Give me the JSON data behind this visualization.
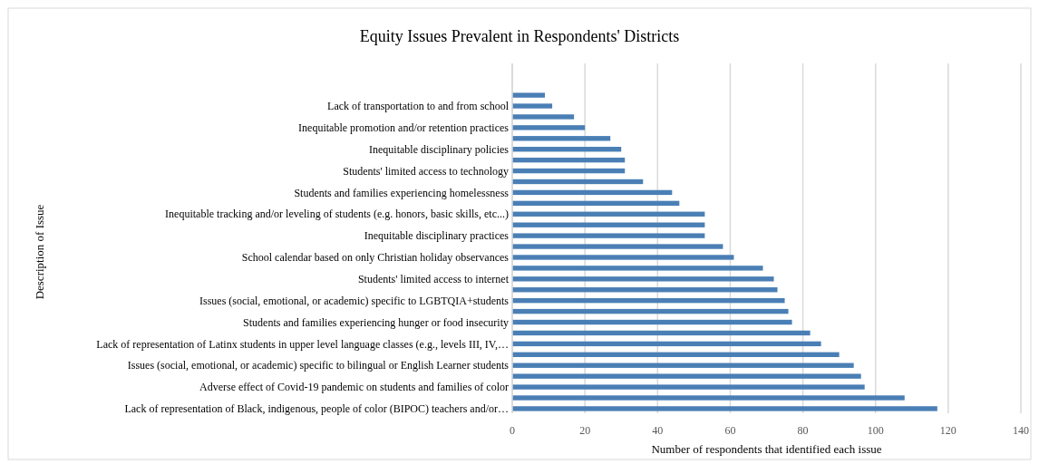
{
  "chart_data": {
    "type": "bar",
    "orientation": "horizontal",
    "title": "Equity Issues Prevalent in Respondents' Districts",
    "xlabel": "Number of respondents that identified each issue",
    "ylabel": "Description of Issue",
    "categories": [
      null,
      "Lack of transportation to and from school",
      null,
      "Inequitable promotion and/or retention practices",
      null,
      "Inequitable disciplinary policies",
      null,
      "Students' limited access to technology",
      null,
      "Students and families experiencing homelessness",
      null,
      "Inequitable tracking and/or leveling of students (e.g. honors, basic skills, etc...)",
      null,
      "Inequitable disciplinary practices",
      null,
      "School calendar based on only Christian holiday observances",
      null,
      "Students' limited access to internet",
      null,
      "Issues (social, emotional, or academic) specific to LGBTQIA+students",
      null,
      "Students and families experiencing hunger or food insecurity",
      null,
      "Lack of representation of Latinx students in upper level language classes (e.g., levels III, IV,…",
      null,
      "Issues (social, emotional, or academic) specific to bilingual or English Learner students",
      null,
      "Adverse effect of Covid-19 pandemic on students and families of color",
      null,
      "Lack of representation of Black, indigenous, people of color (BIPOC) teachers and/or…"
    ],
    "values": [
      9,
      11,
      17,
      20,
      27,
      30,
      31,
      31,
      36,
      44,
      46,
      53,
      53,
      53,
      58,
      61,
      69,
      72,
      73,
      75,
      76,
      77,
      82,
      85,
      90,
      94,
      96,
      97,
      108,
      117
    ],
    "color": "#4a7fb5",
    "xlim": [
      0,
      140
    ],
    "xticks": [
      0,
      20,
      40,
      60,
      80,
      100,
      120,
      140
    ],
    "grid": "x"
  }
}
